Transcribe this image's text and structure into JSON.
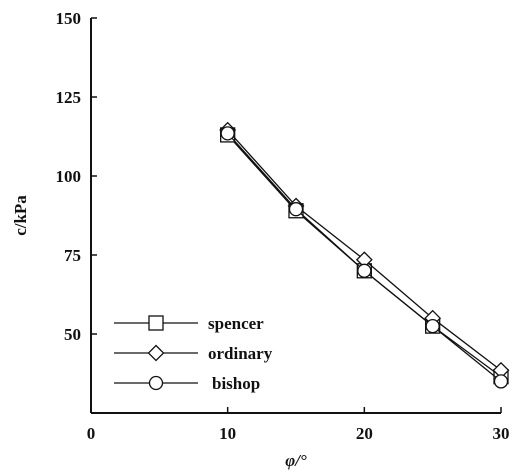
{
  "chart_data": {
    "type": "line",
    "xlabel": "φ/°",
    "ylabel": "c/kPa",
    "xlim": [
      0,
      30
    ],
    "ylim": [
      25,
      150
    ],
    "xticks": [
      0,
      10,
      20,
      30
    ],
    "yticks": [
      50,
      75,
      100,
      125,
      150
    ],
    "grid": false,
    "legend_position": "bottom-left",
    "x": [
      10,
      15,
      20,
      25,
      30
    ],
    "series": [
      {
        "name": "spencer",
        "marker": "square",
        "values": [
          113,
          89,
          70,
          52.5,
          36.5
        ]
      },
      {
        "name": "ordinary",
        "marker": "diamond",
        "values": [
          114.5,
          90.5,
          73.5,
          55,
          38.5
        ]
      },
      {
        "name": "bishop",
        "marker": "circle",
        "values": [
          113.5,
          89.5,
          70,
          52.5,
          35
        ]
      }
    ],
    "colors": {
      "line": "#111111",
      "marker_fill": "#ffffff"
    }
  }
}
